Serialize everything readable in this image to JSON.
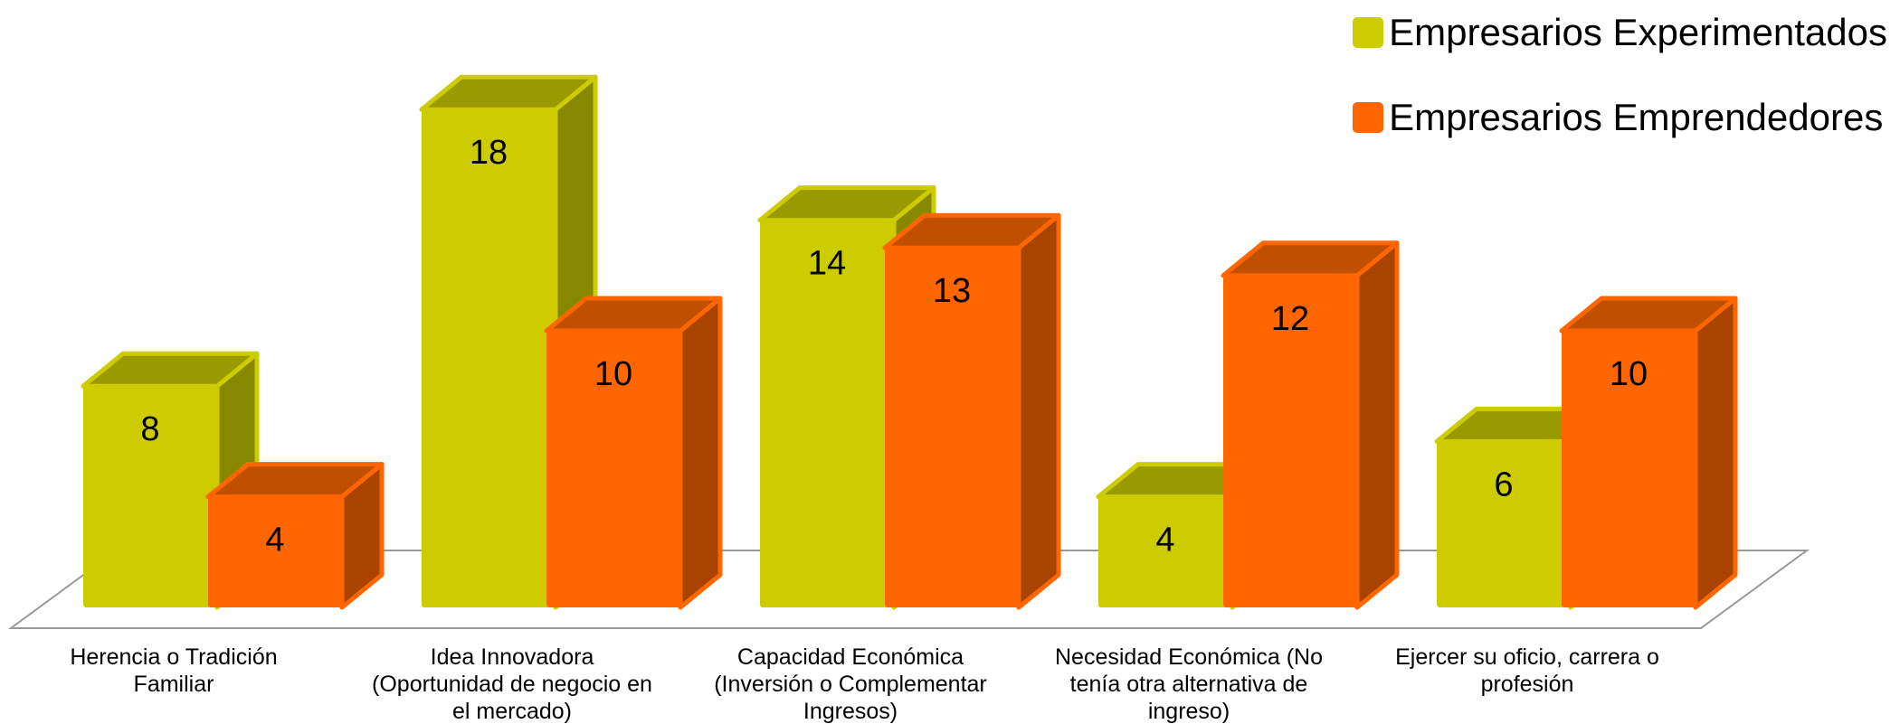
{
  "chart_data": {
    "type": "bar",
    "categories": [
      [
        "Herencia o Tradición",
        "Familiar"
      ],
      [
        "Idea Innovadora",
        "(Oportunidad de negocio en",
        "el mercado)"
      ],
      [
        "Capacidad Económica",
        "(Inversión o Complementar",
        "Ingresos)"
      ],
      [
        "Necesidad Económica (No",
        "tenía otra alternativa de",
        "ingreso)"
      ],
      [
        "Ejercer su oficio, carrera o",
        "profesión"
      ]
    ],
    "series": [
      {
        "name": "Empresarios Experimentados",
        "values": [
          8,
          18,
          14,
          4,
          6
        ]
      },
      {
        "name": "Empresarios Emprendedores",
        "values": [
          4,
          10,
          13,
          12,
          10
        ]
      }
    ],
    "colors": {
      "experimentados": {
        "face": "#cccc00",
        "side": "#888800",
        "top": "#999900"
      },
      "emprendedores": {
        "face": "#ff6600",
        "side": "#a84400",
        "top": "#c05000"
      },
      "floor": "#999999"
    },
    "legend_position": "top-right",
    "grid": false,
    "title": "",
    "xlabel": "",
    "ylabel": ""
  }
}
